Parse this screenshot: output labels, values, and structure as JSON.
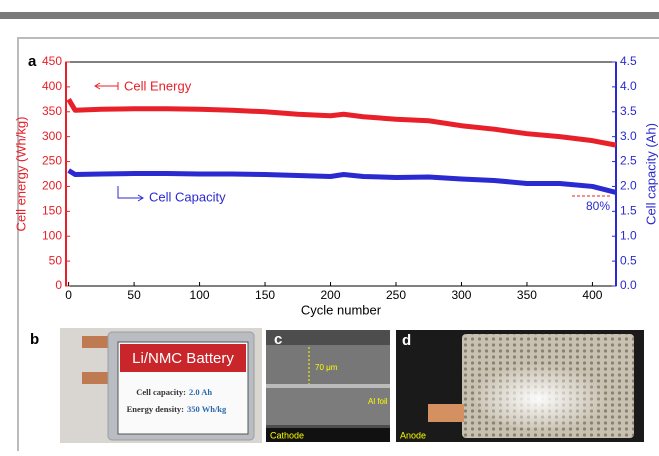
{
  "chart_data": {
    "type": "line",
    "x_label": "Cycle number",
    "y_label": "Cell energy (Wh/kg)",
    "y2_label": "Cell capacity (Ah)",
    "x": [
      0,
      5,
      25,
      50,
      75,
      100,
      125,
      150,
      175,
      200,
      210,
      225,
      250,
      275,
      300,
      325,
      350,
      375,
      400,
      418
    ],
    "series": [
      {
        "name": "Cell Energy",
        "color": "#e8202a",
        "axis": "y",
        "values": [
          375,
          353,
          355,
          356,
          356,
          355,
          353,
          350,
          345,
          342,
          345,
          340,
          335,
          332,
          322,
          315,
          306,
          300,
          292,
          283
        ]
      },
      {
        "name": "Cell Capacity",
        "color": "#2a2ad0",
        "axis": "y2",
        "values": [
          2.32,
          2.24,
          2.25,
          2.26,
          2.26,
          2.25,
          2.25,
          2.24,
          2.22,
          2.2,
          2.24,
          2.2,
          2.18,
          2.19,
          2.15,
          2.12,
          2.06,
          2.06,
          2.0,
          1.88
        ]
      }
    ],
    "annotation": "80%",
    "xlim": [
      -2,
      418
    ],
    "xticks": [
      0,
      50,
      100,
      150,
      200,
      250,
      300,
      350,
      400
    ],
    "ylim": [
      0,
      450
    ],
    "yticks": [
      0,
      50,
      100,
      150,
      200,
      250,
      300,
      350,
      400,
      450
    ],
    "y2lim": [
      0,
      4.5
    ],
    "y2ticks": [
      {
        "value": 0,
        "label": "0.0"
      },
      0.5,
      {
        "value": 1,
        "label": "1.0"
      },
      1.5,
      {
        "value": 2,
        "label": "2.0"
      },
      2.5,
      {
        "value": 3,
        "label": "3.0"
      },
      3.5,
      {
        "value": 4,
        "label": "4.0"
      },
      4.5
    ]
  },
  "figure": {
    "panels": [
      "a",
      "b",
      "c",
      "d"
    ],
    "battery": {
      "title": "Li/NMC Battery",
      "capacity_label": "Cell capacity:",
      "capacity": "2.0 Ah",
      "density_label": "Energy density:",
      "density": "350 Wh/kg"
    },
    "cathode": {
      "scale": "70 μm",
      "foil": "Al foil",
      "label": "Cathode"
    },
    "anode": {
      "label": "Anode"
    }
  }
}
